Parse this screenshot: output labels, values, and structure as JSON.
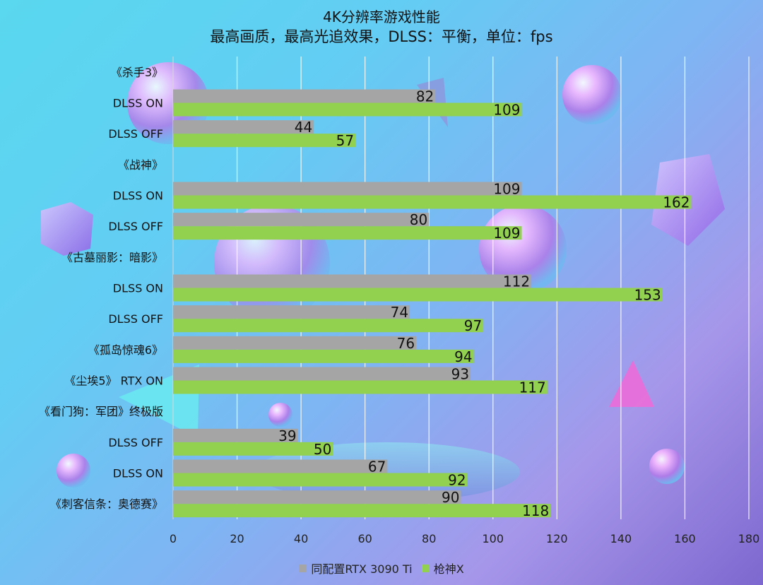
{
  "title": "4K分辨率游戏性能",
  "subtitle": "最高画质，最高光追效果，DLSS：平衡，单位：fps",
  "chart_data": {
    "type": "bar",
    "orientation": "horizontal",
    "xlim": [
      0,
      180
    ],
    "x_ticks": [
      "0",
      "20",
      "40",
      "60",
      "80",
      "100",
      "120",
      "140",
      "160",
      "180"
    ],
    "grid": "vertical",
    "legend_position": "bottom",
    "rows": [
      {
        "label": "《杀手3》",
        "values": [
          null,
          null
        ]
      },
      {
        "label": "DLSS ON",
        "values": [
          82,
          109
        ]
      },
      {
        "label": "DLSS OFF",
        "values": [
          44,
          57
        ]
      },
      {
        "label": "《战神》",
        "values": [
          null,
          null
        ]
      },
      {
        "label": "DLSS ON",
        "values": [
          109,
          162
        ]
      },
      {
        "label": "DLSS OFF",
        "values": [
          80,
          109
        ]
      },
      {
        "label": "《古墓丽影：暗影》",
        "values": [
          null,
          null
        ]
      },
      {
        "label": "DLSS ON",
        "values": [
          112,
          153
        ]
      },
      {
        "label": "DLSS OFF",
        "values": [
          74,
          97
        ]
      },
      {
        "label": "《孤岛惊魂6》",
        "values": [
          76,
          94
        ]
      },
      {
        "label": "《尘埃5》 RTX ON",
        "values": [
          93,
          117
        ]
      },
      {
        "label": "《看门狗：军团》终极版",
        "values": [
          null,
          null
        ]
      },
      {
        "label": "DLSS OFF",
        "values": [
          39,
          50
        ]
      },
      {
        "label": "DLSS ON",
        "values": [
          67,
          92
        ]
      },
      {
        "label": "《刺客信条：奥德赛》",
        "values": [
          90,
          118
        ]
      }
    ],
    "series": [
      {
        "name": "同配置RTX 3090 Ti",
        "color": "#a5a5a5"
      },
      {
        "name": "枪神X",
        "color": "#92d050"
      }
    ]
  }
}
